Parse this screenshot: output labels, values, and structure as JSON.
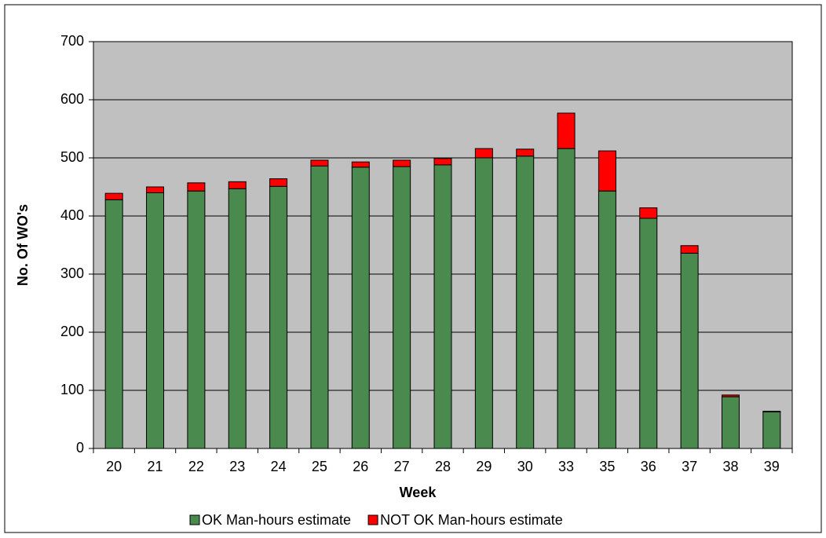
{
  "chart_data": {
    "type": "stacked_bar",
    "y_label": "No. Of WO's",
    "x_label": "Week",
    "categories": [
      "20",
      "21",
      "22",
      "23",
      "24",
      "25",
      "26",
      "27",
      "28",
      "29",
      "30",
      "33",
      "35",
      "36",
      "37",
      "38",
      "39"
    ],
    "series": [
      {
        "name": "OK Man-hours estimate",
        "color": "#4a8a4f",
        "values": [
          428,
          440,
          443,
          447,
          451,
          486,
          484,
          485,
          488,
          500,
          503,
          516,
          443,
          396,
          336,
          89,
          63
        ]
      },
      {
        "name": "NOT OK Man-hours estimate",
        "color": "#ff0000",
        "values": [
          11,
          10,
          14,
          12,
          13,
          10,
          9,
          11,
          11,
          16,
          12,
          61,
          69,
          18,
          13,
          3,
          1
        ]
      }
    ],
    "ylim": [
      0,
      700
    ],
    "yticks": [
      0,
      100,
      200,
      300,
      400,
      500,
      600,
      700
    ],
    "grid": true,
    "plot_background": "#c0c0c0",
    "legend": "bottom"
  }
}
